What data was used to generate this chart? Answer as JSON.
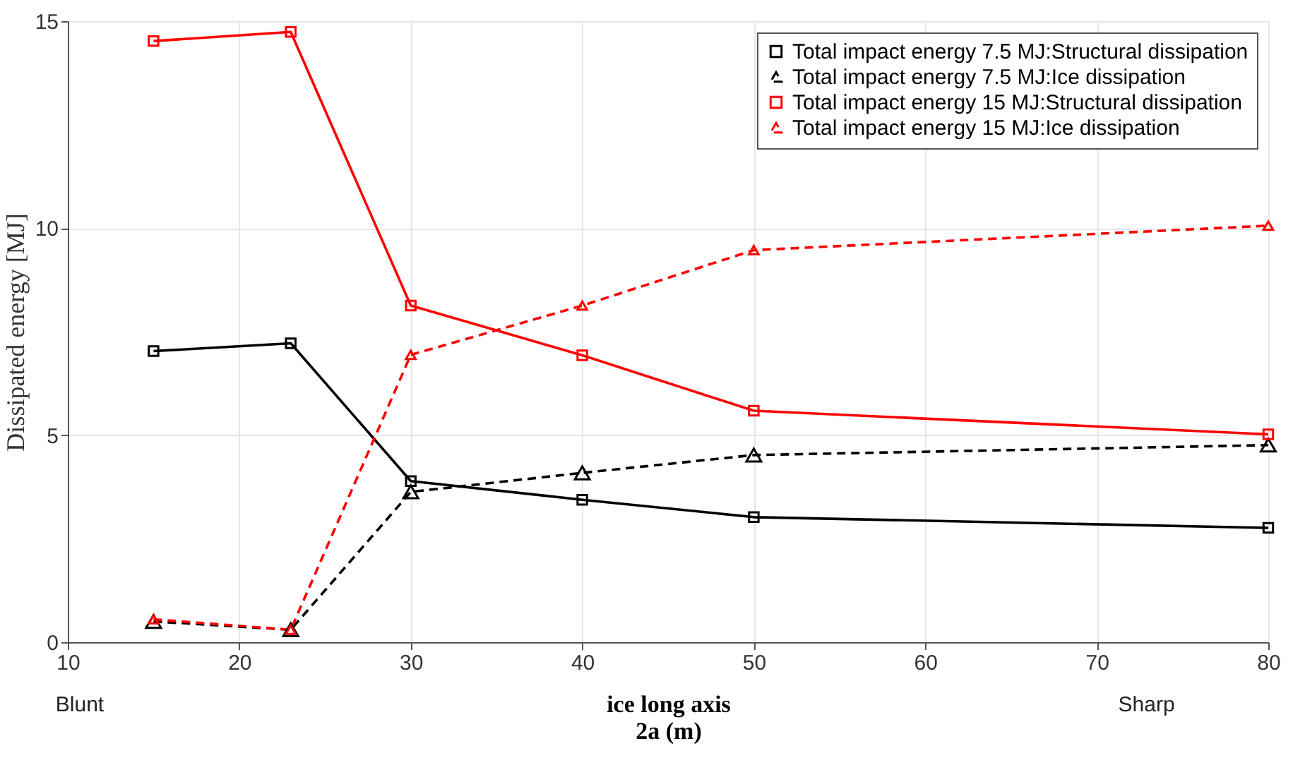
{
  "chart_data": {
    "type": "line",
    "xlabel": "ice long axis\n2a (m)",
    "ylabel": "Dissipated energy [MJ]",
    "x": [
      15,
      23,
      30,
      40,
      50,
      80
    ],
    "series": [
      {
        "name": "Total impact energy 7.5 MJ:Structural dissipation",
        "color": "#000000",
        "marker": "square",
        "line_style": "solid",
        "values": [
          7.03,
          7.22,
          3.89,
          3.44,
          3.02,
          2.76
        ]
      },
      {
        "name": "Total impact energy 7.5 MJ:Ice dissipation",
        "color": "#000000",
        "marker": "triangle",
        "line_style": "dashed",
        "values": [
          0.5,
          0.3,
          3.63,
          4.09,
          4.52,
          4.76
        ]
      },
      {
        "name": "Total impact energy 15 MJ:Structural dissipation",
        "color": "#ff0000",
        "marker": "square",
        "line_style": "solid",
        "values": [
          14.52,
          14.74,
          8.13,
          6.93,
          5.59,
          5.02
        ]
      },
      {
        "name": "Total impact energy 15 MJ:Ice dissipation",
        "color": "#ff0000",
        "marker": "triangle",
        "line_style": "dashed",
        "values": [
          0.55,
          0.3,
          6.94,
          8.13,
          9.47,
          10.06
        ]
      }
    ],
    "xlim": [
      10,
      80
    ],
    "xticks": [
      10,
      20,
      30,
      40,
      50,
      60,
      70,
      80
    ],
    "ylim": [
      0,
      15
    ],
    "yticks": [
      0,
      5,
      10,
      15
    ],
    "grid": true,
    "legend": "top right",
    "annotations": [
      "Blunt",
      "Sharp"
    ]
  }
}
